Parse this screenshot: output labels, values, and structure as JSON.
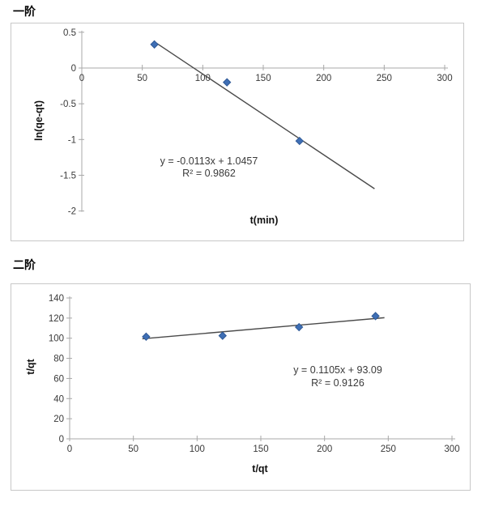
{
  "page": {
    "background": "#ffffff"
  },
  "chart_data": [
    {
      "type": "scatter",
      "title": "一阶",
      "xlabel": "t(min)",
      "ylabel": "ln(qe-qt)",
      "xlim": [
        0,
        300
      ],
      "ylim": [
        -2,
        0.5
      ],
      "xticks": [
        0,
        50,
        100,
        150,
        200,
        250,
        300
      ],
      "yticks": [
        0.5,
        0,
        -0.5,
        -1,
        -1.5,
        -2
      ],
      "points": [
        [
          60,
          0.33
        ],
        [
          120,
          -0.2
        ],
        [
          180,
          -1.02
        ]
      ],
      "trendline": {
        "slope": -0.0113,
        "intercept": 1.0457,
        "x_start": 61,
        "x_end": 242
      },
      "equation": "y = -0.0113x + 1.0457",
      "r_squared": "R² = 0.9862",
      "marker_color": "#3f6fb5",
      "marker_edge_color": "#305a97",
      "trendline_color": "#4a4a4a",
      "axis_color": "#a8a8a8",
      "grid": false,
      "legend": "none"
    },
    {
      "type": "scatter",
      "title": "二阶",
      "xlabel": "t/qt",
      "ylabel": "t/qt",
      "xlim": [
        0,
        300
      ],
      "ylim": [
        0,
        140
      ],
      "xticks": [
        0,
        50,
        100,
        150,
        200,
        250,
        300
      ],
      "yticks": [
        0,
        20,
        40,
        60,
        80,
        100,
        120,
        140
      ],
      "points": [
        [
          60,
          101.5
        ],
        [
          120,
          102.5
        ],
        [
          180,
          111
        ],
        [
          240,
          122
        ]
      ],
      "trendline": {
        "slope": 0.1105,
        "intercept": 93.09,
        "x_start": 57,
        "x_end": 247
      },
      "equation": "y = 0.1105x + 93.09",
      "r_squared": "R² = 0.9126",
      "marker_color": "#3f6fb5",
      "marker_edge_color": "#305a97",
      "trendline_color": "#4a4a4a",
      "axis_color": "#a8a8a8",
      "grid": false,
      "legend": "none"
    }
  ]
}
